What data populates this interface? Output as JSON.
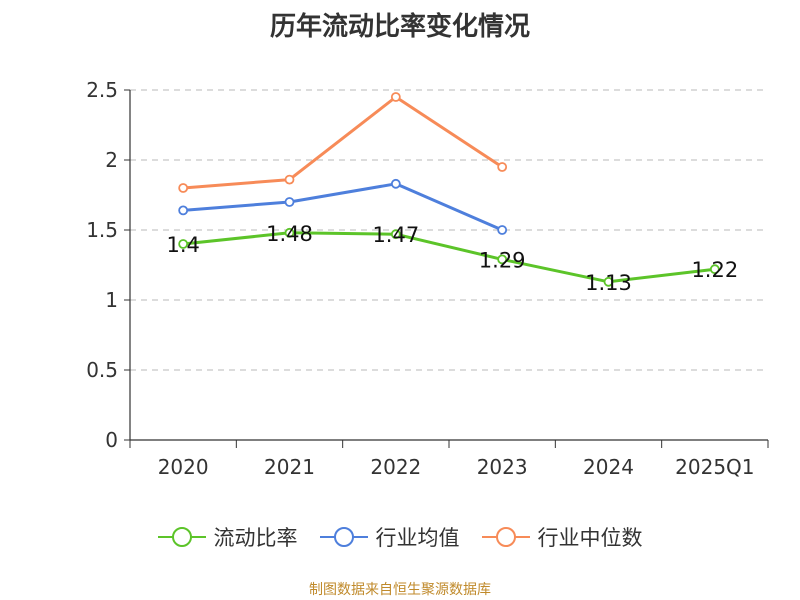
{
  "chart_data": {
    "type": "line",
    "title": "历年流动比率变化情况",
    "categories": [
      "2020",
      "2021",
      "2022",
      "2023",
      "2024",
      "2025Q1"
    ],
    "y_ticks": [
      "0",
      "0.5",
      "1",
      "1.5",
      "2",
      "2.5"
    ],
    "ylim": [
      0,
      2.5
    ],
    "grid": true,
    "legend_position": "bottom",
    "series": [
      {
        "name": "流动比率",
        "color": "#5cc429",
        "values": [
          1.4,
          1.48,
          1.47,
          1.29,
          1.13,
          1.22
        ],
        "labels": [
          "1.4",
          "1.48",
          "1.47",
          "1.29",
          "1.13",
          "1.22"
        ]
      },
      {
        "name": "行业均值",
        "color": "#4e7fdc",
        "values": [
          1.64,
          1.7,
          1.83,
          1.5,
          null,
          null
        ]
      },
      {
        "name": "行业中位数",
        "color": "#f78b58",
        "values": [
          1.8,
          1.86,
          2.45,
          1.95,
          null,
          null
        ]
      }
    ]
  },
  "source_text": "制图数据来自恒生聚源数据库"
}
